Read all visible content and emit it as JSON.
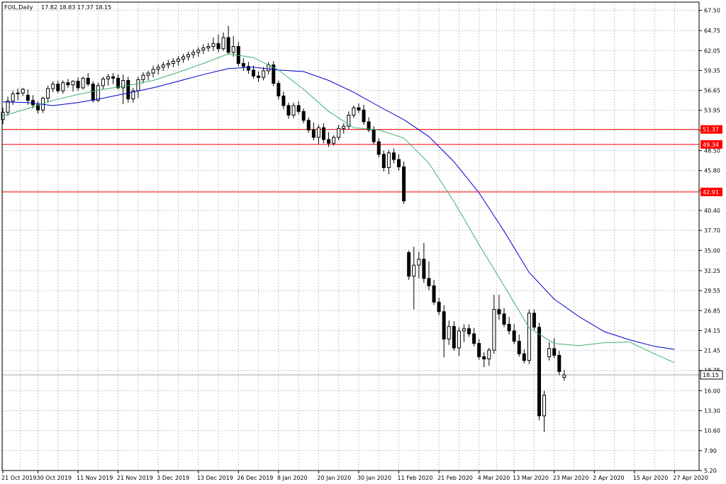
{
  "header": {
    "symbol": "FOIL,Daily",
    "ohlc": "17.82 18.83 17.37 18.15"
  },
  "chart_data": {
    "type": "candlestick",
    "ylim": [
      5.2,
      68.6
    ],
    "y_ticks": [
      "67.50",
      "64.75",
      "62.05",
      "59.35",
      "56.65",
      "53.95",
      "51.25",
      "48.50",
      "45.80",
      "43.10",
      "40.40",
      "37.70",
      "35.00",
      "32.25",
      "29.55",
      "26.85",
      "24.15",
      "21.45",
      "18.75",
      "16.00",
      "13.30",
      "10.60",
      "7.90",
      "5.20"
    ],
    "x_tick_labels": [
      {
        "label": "21 Oct 2019",
        "index": 0
      },
      {
        "label": "30 Oct 2019",
        "index": 7
      },
      {
        "label": "11 Nov 2019",
        "index": 15
      },
      {
        "label": "21 Nov 2019",
        "index": 23
      },
      {
        "label": "3 Dec 2019",
        "index": 31
      },
      {
        "label": "13 Dec 2019",
        "index": 39
      },
      {
        "label": "26 Dec 2019",
        "index": 47
      },
      {
        "label": "8 Jan 2020",
        "index": 55
      },
      {
        "label": "20 Jan 2020",
        "index": 63
      },
      {
        "label": "30 Jan 2020",
        "index": 71
      },
      {
        "label": "11 Feb 2020",
        "index": 79
      },
      {
        "label": "21 Feb 2020",
        "index": 87
      },
      {
        "label": "4 Mar 2020",
        "index": 95
      },
      {
        "label": "13 Mar 2020",
        "index": 102
      },
      {
        "label": "23 Mar 2020",
        "index": 110
      },
      {
        "label": "2 Apr 2020",
        "index": 118
      },
      {
        "label": "15 Apr 2020",
        "index": 126
      },
      {
        "label": "27 Apr 2020",
        "index": 134
      }
    ],
    "candles": [
      [
        52.7,
        54.3,
        52.1,
        53.7
      ],
      [
        53.7,
        55.8,
        53.2,
        55.2
      ],
      [
        55.2,
        56.6,
        54.7,
        56.2
      ],
      [
        56.2,
        56.9,
        55.3,
        56.3
      ],
      [
        56.3,
        57.0,
        55.9,
        56.8
      ],
      [
        56.0,
        56.8,
        54.7,
        55.3
      ],
      [
        55.3,
        56.0,
        54.2,
        54.7
      ],
      [
        54.7,
        55.2,
        53.5,
        54.0
      ],
      [
        54.0,
        55.8,
        53.6,
        55.6
      ],
      [
        55.6,
        57.3,
        55.0,
        56.9
      ],
      [
        56.9,
        57.9,
        56.4,
        57.5
      ],
      [
        57.5,
        58.0,
        56.3,
        56.6
      ],
      [
        56.6,
        58.0,
        56.2,
        57.7
      ],
      [
        57.7,
        58.2,
        57.0,
        57.4
      ],
      [
        57.4,
        58.0,
        56.5,
        57.9
      ],
      [
        57.9,
        58.4,
        56.6,
        57.0
      ],
      [
        57.0,
        58.5,
        56.8,
        58.3
      ],
      [
        58.3,
        59.0,
        57.2,
        57.5
      ],
      [
        57.5,
        57.9,
        55.0,
        55.3
      ],
      [
        55.3,
        57.7,
        55.1,
        57.3
      ],
      [
        57.3,
        58.5,
        56.8,
        58.2
      ],
      [
        58.2,
        58.9,
        57.3,
        58.5
      ],
      [
        58.5,
        59.0,
        57.5,
        58.3
      ],
      [
        58.3,
        58.8,
        56.8,
        57.0
      ],
      [
        57.0,
        58.8,
        54.8,
        58.0
      ],
      [
        58.0,
        58.5,
        55.0,
        55.5
      ],
      [
        55.5,
        57.0,
        55.0,
        56.6
      ],
      [
        56.6,
        58.5,
        55.6,
        58.1
      ],
      [
        58.1,
        59.1,
        57.6,
        58.7
      ],
      [
        58.7,
        59.3,
        58.0,
        59.0
      ],
      [
        59.0,
        60.0,
        58.4,
        59.5
      ],
      [
        59.5,
        60.2,
        58.8,
        59.8
      ],
      [
        59.8,
        60.5,
        59.3,
        60.1
      ],
      [
        60.1,
        60.8,
        59.6,
        60.3
      ],
      [
        60.3,
        61.0,
        59.8,
        60.6
      ],
      [
        60.6,
        61.3,
        60.0,
        60.9
      ],
      [
        60.9,
        61.6,
        60.4,
        61.2
      ],
      [
        61.2,
        61.9,
        60.7,
        61.5
      ],
      [
        61.5,
        62.2,
        61.0,
        61.8
      ],
      [
        61.8,
        62.5,
        61.2,
        62.1
      ],
      [
        62.1,
        62.9,
        61.6,
        62.4
      ],
      [
        62.4,
        63.1,
        61.9,
        62.6
      ],
      [
        62.6,
        63.8,
        62.0,
        63.0
      ],
      [
        63.0,
        64.2,
        61.8,
        62.3
      ],
      [
        62.3,
        64.5,
        62.0,
        63.8
      ],
      [
        63.8,
        65.4,
        61.5,
        61.8
      ],
      [
        61.8,
        64.0,
        61.2,
        62.6
      ],
      [
        62.6,
        63.2,
        59.9,
        60.3
      ],
      [
        60.3,
        61.0,
        59.3,
        59.9
      ],
      [
        59.9,
        60.5,
        58.9,
        59.4
      ],
      [
        59.4,
        60.0,
        58.2,
        58.6
      ],
      [
        58.6,
        59.2,
        57.8,
        58.4
      ],
      [
        58.4,
        59.8,
        58.0,
        59.3
      ],
      [
        59.3,
        60.5,
        58.8,
        60.1
      ],
      [
        60.1,
        60.6,
        57.2,
        57.6
      ],
      [
        57.6,
        58.0,
        55.4,
        55.9
      ],
      [
        55.9,
        56.5,
        54.1,
        54.6
      ],
      [
        54.6,
        55.0,
        52.8,
        53.3
      ],
      [
        53.3,
        55.0,
        52.9,
        54.6
      ],
      [
        54.6,
        55.2,
        53.4,
        53.8
      ],
      [
        53.8,
        54.2,
        52.2,
        52.6
      ],
      [
        52.6,
        53.0,
        50.9,
        51.3
      ],
      [
        51.3,
        52.3,
        49.9,
        50.3
      ],
      [
        50.3,
        52.0,
        49.4,
        51.6
      ],
      [
        51.6,
        52.2,
        49.5,
        50.0
      ],
      [
        50.0,
        51.0,
        49.0,
        49.5
      ],
      [
        49.5,
        50.6,
        49.2,
        50.3
      ],
      [
        50.3,
        52.0,
        49.9,
        51.5
      ],
      [
        51.5,
        52.2,
        50.8,
        51.8
      ],
      [
        51.8,
        53.8,
        51.4,
        53.3
      ],
      [
        53.3,
        54.6,
        52.9,
        54.3
      ],
      [
        54.3,
        54.9,
        53.6,
        54.0
      ],
      [
        54.0,
        54.7,
        52.0,
        52.4
      ],
      [
        52.4,
        53.0,
        51.0,
        51.3
      ],
      [
        51.3,
        51.8,
        49.3,
        49.7
      ],
      [
        49.7,
        50.2,
        47.6,
        48.0
      ],
      [
        48.0,
        48.5,
        45.7,
        46.2
      ],
      [
        46.2,
        48.6,
        45.3,
        48.2
      ],
      [
        48.2,
        48.8,
        46.8,
        47.3
      ],
      [
        47.3,
        48.0,
        45.8,
        46.3
      ],
      [
        46.3,
        47.0,
        41.3,
        41.7
      ],
      [
        34.7,
        35.0,
        31.0,
        31.5
      ],
      [
        31.5,
        35.5,
        27.0,
        33.0
      ],
      [
        33.0,
        34.8,
        31.2,
        33.8
      ],
      [
        33.8,
        36.0,
        30.6,
        31.2
      ],
      [
        31.2,
        33.5,
        29.6,
        30.2
      ],
      [
        30.2,
        31.0,
        27.6,
        28.0
      ],
      [
        28.0,
        28.6,
        26.2,
        26.7
      ],
      [
        26.7,
        27.6,
        20.5,
        23.0
      ],
      [
        23.0,
        25.5,
        22.2,
        24.7
      ],
      [
        24.7,
        25.4,
        21.4,
        21.8
      ],
      [
        21.8,
        24.6,
        20.7,
        24.1
      ],
      [
        24.1,
        25.0,
        22.6,
        24.4
      ],
      [
        24.4,
        25.0,
        23.3,
        23.7
      ],
      [
        23.7,
        24.5,
        22.0,
        22.4
      ],
      [
        22.4,
        23.0,
        20.2,
        20.6
      ],
      [
        20.6,
        21.2,
        19.2,
        20.3
      ],
      [
        20.3,
        21.8,
        19.4,
        21.5
      ],
      [
        21.5,
        29.0,
        21.0,
        27.0
      ],
      [
        27.0,
        29.0,
        25.6,
        26.4
      ],
      [
        26.4,
        27.2,
        24.6,
        25.0
      ],
      [
        25.0,
        26.0,
        23.6,
        24.1
      ],
      [
        24.1,
        25.0,
        22.3,
        22.7
      ],
      [
        22.7,
        23.6,
        20.6,
        21.0
      ],
      [
        21.0,
        21.6,
        19.7,
        20.1
      ],
      [
        20.1,
        27.0,
        19.6,
        26.5
      ],
      [
        26.5,
        27.0,
        24.2,
        24.6
      ],
      [
        24.6,
        25.2,
        12.0,
        12.6
      ],
      [
        12.6,
        16.0,
        10.4,
        15.4
      ],
      [
        20.6,
        22.6,
        20.1,
        21.7
      ],
      [
        21.7,
        23.1,
        20.4,
        20.8
      ],
      [
        20.8,
        21.4,
        18.1,
        18.6
      ],
      [
        17.82,
        18.83,
        17.37,
        18.15
      ]
    ],
    "ma_fast": [
      [
        0,
        53.2
      ],
      [
        5,
        54.2
      ],
      [
        10,
        55.3
      ],
      [
        15,
        56.1
      ],
      [
        20,
        56.8
      ],
      [
        25,
        57.3
      ],
      [
        30,
        58.0
      ],
      [
        35,
        59.1
      ],
      [
        40,
        60.3
      ],
      [
        45,
        61.6
      ],
      [
        50,
        61.1
      ],
      [
        55,
        59.4
      ],
      [
        60,
        56.8
      ],
      [
        65,
        53.8
      ],
      [
        70,
        51.6
      ],
      [
        75,
        51.3
      ],
      [
        80,
        50.2
      ],
      [
        85,
        46.8
      ],
      [
        90,
        41.6
      ],
      [
        95,
        35.8
      ],
      [
        100,
        30.2
      ],
      [
        105,
        24.5
      ],
      [
        110,
        22.4
      ],
      [
        115,
        22.1
      ],
      [
        120,
        22.5
      ],
      [
        125,
        22.6
      ],
      [
        130,
        21.0
      ],
      [
        134,
        19.8
      ]
    ],
    "ma_slow": [
      [
        0,
        55.1
      ],
      [
        5,
        55.0
      ],
      [
        10,
        54.6
      ],
      [
        15,
        55.0
      ],
      [
        20,
        55.6
      ],
      [
        25,
        56.3
      ],
      [
        30,
        57.0
      ],
      [
        35,
        57.9
      ],
      [
        40,
        58.8
      ],
      [
        45,
        59.6
      ],
      [
        50,
        59.8
      ],
      [
        55,
        59.4
      ],
      [
        60,
        59.2
      ],
      [
        65,
        58.0
      ],
      [
        70,
        56.4
      ],
      [
        75,
        54.5
      ],
      [
        80,
        52.7
      ],
      [
        85,
        50.4
      ],
      [
        90,
        47.0
      ],
      [
        95,
        42.8
      ],
      [
        100,
        37.6
      ],
      [
        105,
        32.0
      ],
      [
        110,
        28.4
      ],
      [
        115,
        26.0
      ],
      [
        120,
        24.0
      ],
      [
        125,
        22.9
      ],
      [
        130,
        22.0
      ],
      [
        134,
        21.6
      ]
    ],
    "h_lines": [
      {
        "label": "51.37",
        "value": 51.37
      },
      {
        "label": "49.34",
        "value": 49.34
      },
      {
        "label": "42.91",
        "value": 42.91
      }
    ],
    "current_price": {
      "label": "18.15",
      "value": 18.15
    },
    "colors": {
      "bull_body": "#ffffff",
      "bear_body": "#000000",
      "candle_outline": "#000000",
      "ma_fast": "#3cb371",
      "ma_slow": "#0000cd",
      "h_line": "#ff0000",
      "grid": "#c8c8c8",
      "current_price_line": "#a0a0a0"
    },
    "grid": true
  }
}
